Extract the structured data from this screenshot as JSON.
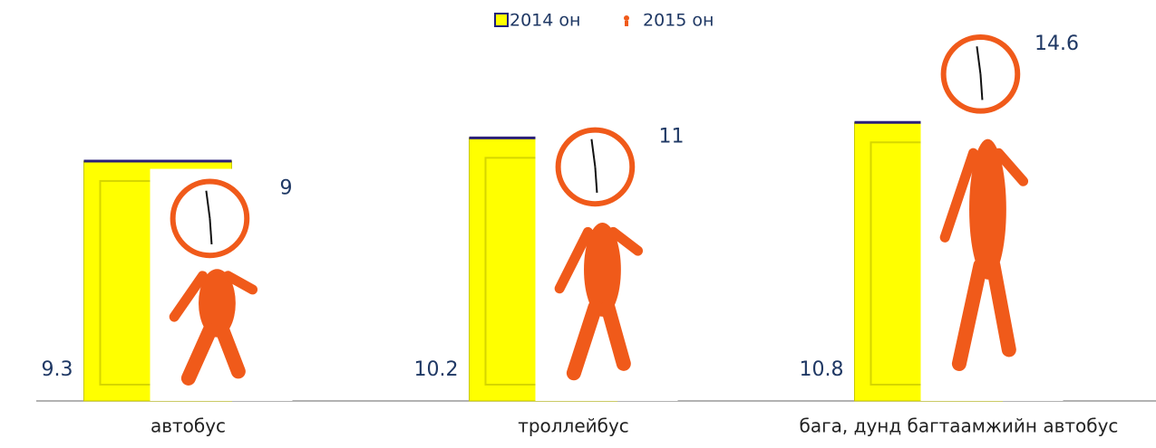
{
  "chart_data": {
    "type": "bar",
    "categories": [
      "автобус",
      "троллейбус",
      "бага, дунд багтаамжийн автобус"
    ],
    "series": [
      {
        "name": "2014 он",
        "color": "#ffff00",
        "values": [
          9.3,
          10.2,
          10.8
        ]
      },
      {
        "name": "2015 он",
        "color": "#f05a1a",
        "values": [
          9,
          11,
          14.6
        ]
      }
    ],
    "legend": "top"
  }
}
